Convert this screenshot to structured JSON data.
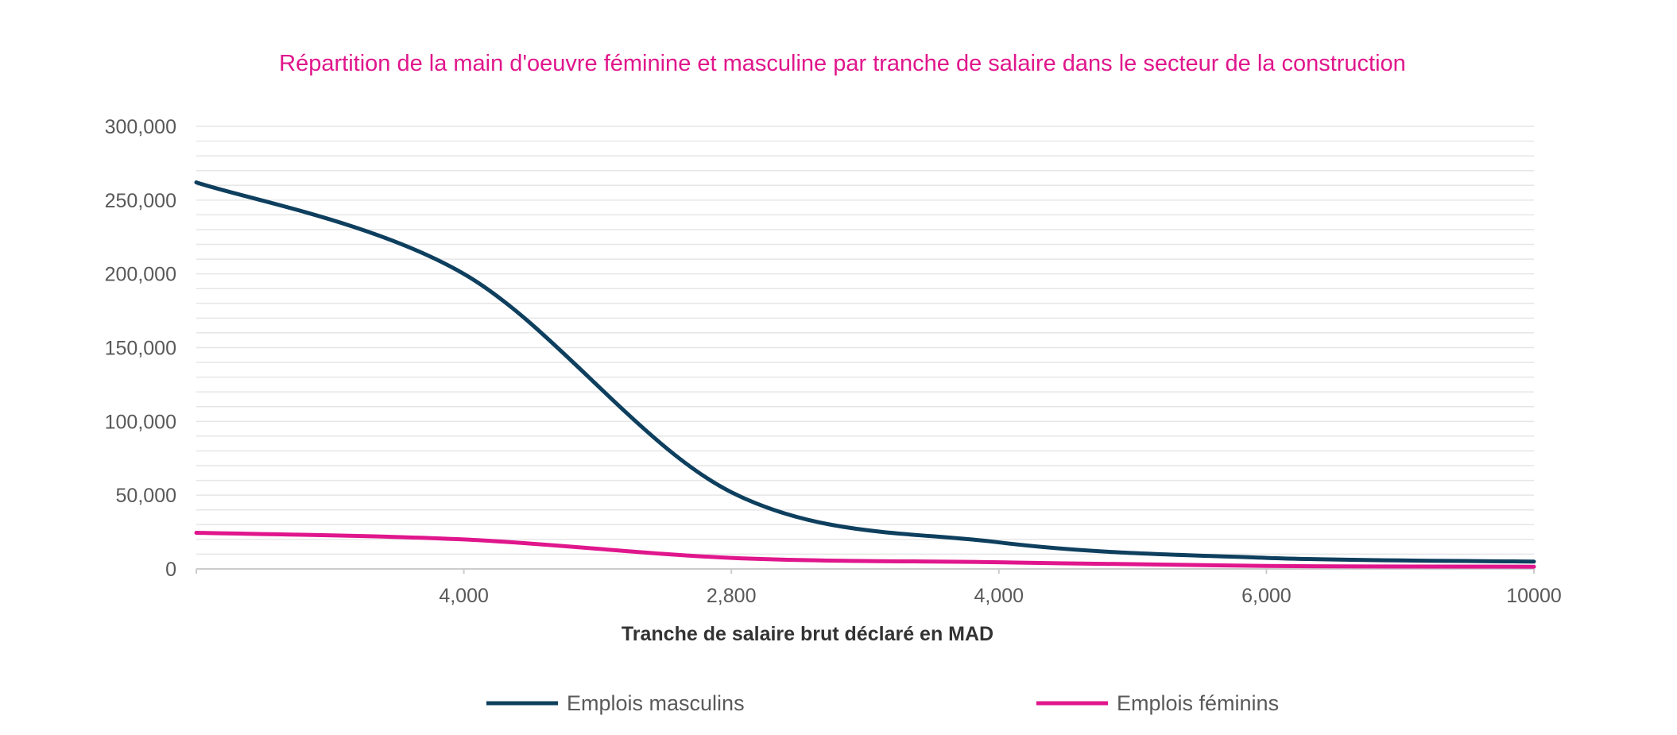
{
  "chart_data": {
    "type": "line",
    "title": "Répartition de la main d'oeuvre féminine et masculine par tranche de salaire dans le secteur de la construction",
    "xlabel": "Tranche de salaire brut déclaré en MAD",
    "ylabel": "",
    "categories": [
      "",
      "4,000",
      "2,800",
      "4,000",
      "6,000",
      "10000"
    ],
    "x_tick_labels": [
      "4,000",
      "2,800",
      "4,000",
      "6,000",
      "10000"
    ],
    "y_tick_labels": [
      "0",
      "50,000",
      "100,000",
      "150,000",
      "200,000",
      "250,000",
      "300,000"
    ],
    "ylim": [
      0,
      300000
    ],
    "y_major_step": 50000,
    "y_minor_step": 10000,
    "grid": true,
    "legend_position": "bottom",
    "series": [
      {
        "name": "Emplois masculins",
        "color": "#0E3F5E",
        "values": [
          262000,
          200000,
          52000,
          18000,
          7500,
          5000
        ]
      },
      {
        "name": "Emplois féminins",
        "color": "#E0168C",
        "values": [
          24500,
          20000,
          7500,
          4500,
          2000,
          1500
        ]
      }
    ],
    "title_color": "#E0168C",
    "grid_color": "#E6E6E6",
    "axis_color": "#CCCCCC"
  }
}
